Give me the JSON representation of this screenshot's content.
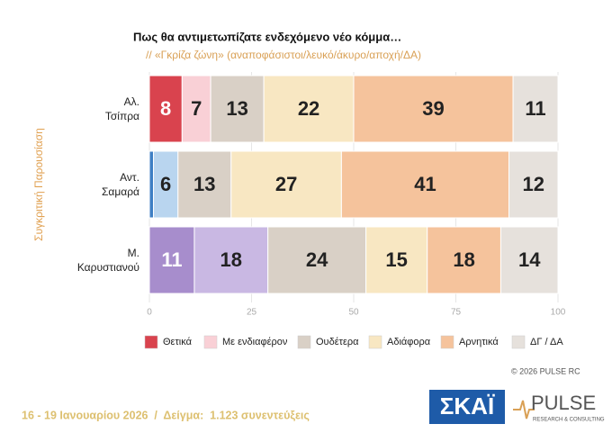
{
  "chart_data": {
    "type": "stacked-barh",
    "title": "Πως θα αντιμετωπίζατε ενδεχόμενο νέο κόμμα…",
    "subtitle": "// «Γκρίζα ζώνη» (αναποφάσιστοι/λευκό/άκυρο/αποχή/ΔΑ)",
    "y_label": "Συγκριτική Παρουσίαση",
    "categories": [
      "Αλ.\nΤσίπρα",
      "Αντ.\nΣαμαρά",
      "Μ.\nΚαρυστιανού"
    ],
    "series": [
      {
        "name": "Θετικά",
        "color": "#d9434e",
        "colors": [
          "#d9434e",
          "#3f7fc4",
          "#a78dcc"
        ],
        "values": [
          8,
          1,
          11
        ],
        "value_labels": [
          "8",
          null,
          "11"
        ]
      },
      {
        "name": "Με ενδιαφέρον",
        "color": "#f9d0d6",
        "colors": [
          "#f9d0d6",
          "#b9d5ef",
          "#c9b8e3"
        ],
        "values": [
          7,
          6,
          18
        ]
      },
      {
        "name": "Ουδέτερα",
        "color": "#d9d0c6",
        "values": [
          13,
          13,
          24
        ]
      },
      {
        "name": "Αδιάφορα",
        "color": "#f8e7c2",
        "values": [
          22,
          27,
          15
        ]
      },
      {
        "name": "Αρνητικά",
        "color": "#f5c39c",
        "values": [
          39,
          41,
          18
        ]
      },
      {
        "name": "ΔΓ / ΔΑ",
        "color": "#e6e1dc",
        "values": [
          11,
          12,
          14
        ]
      }
    ],
    "xlim": [
      0,
      100
    ],
    "xticks": [
      0,
      25,
      50,
      75,
      100
    ],
    "grid": true,
    "watermark": "PULSE"
  },
  "footer": {
    "date_sample": "16 - 19 Ιανουαρίου 2026  /  Δείγμα:  1.123 συνεντεύξεις",
    "copyright": "© 2026 PULSE RC",
    "logo_skai": "ΣΚΑΪ",
    "logo_pulse": "PULSE",
    "logo_pulse_sub": "RESEARCH & CONSULTING"
  }
}
